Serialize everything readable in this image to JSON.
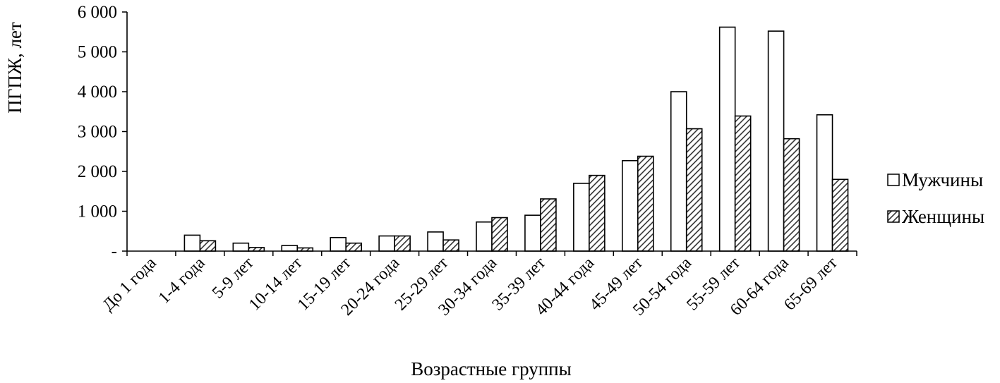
{
  "chart_data": {
    "type": "bar",
    "title": "",
    "xlabel": "Возрастные группы",
    "ylabel": "ПГПЖ, лет",
    "ylim": [
      0,
      6000
    ],
    "yticks": [
      {
        "value": 0,
        "label": "-"
      },
      {
        "value": 1000,
        "label": "1 000"
      },
      {
        "value": 2000,
        "label": "2 000"
      },
      {
        "value": 3000,
        "label": "3 000"
      },
      {
        "value": 4000,
        "label": "4 000"
      },
      {
        "value": 5000,
        "label": "5 000"
      },
      {
        "value": 6000,
        "label": "6 000"
      }
    ],
    "categories": [
      "До 1 года",
      "1-4 года",
      "5-9 лет",
      "10-14 лет",
      "15-19 лет",
      "20-24 года",
      "25-29 лет",
      "30-34 года",
      "35-39 лет",
      "40-44 года",
      "45-49 лет",
      "50-54 года",
      "55-59 лет",
      "60-64 года",
      "65-69 лет"
    ],
    "series": [
      {
        "name": "Мужчины",
        "pattern": "white",
        "values": [
          0,
          400,
          200,
          140,
          340,
          380,
          480,
          730,
          900,
          1700,
          2270,
          4000,
          5620,
          5520,
          3420
        ]
      },
      {
        "name": "Женщины",
        "pattern": "hatched",
        "values": [
          0,
          260,
          90,
          80,
          200,
          380,
          280,
          840,
          1310,
          1900,
          2380,
          3070,
          3390,
          2820,
          1800
        ]
      }
    ],
    "grid": false,
    "legend": "right"
  }
}
